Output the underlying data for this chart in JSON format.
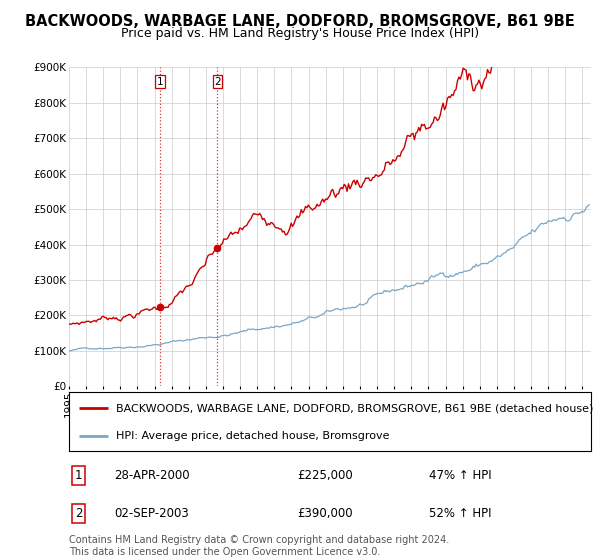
{
  "title": "BACKWOODS, WARBAGE LANE, DODFORD, BROMSGROVE, B61 9BE",
  "subtitle": "Price paid vs. HM Land Registry's House Price Index (HPI)",
  "ylim": [
    0,
    900000
  ],
  "yticks": [
    0,
    100000,
    200000,
    300000,
    400000,
    500000,
    600000,
    700000,
    800000,
    900000
  ],
  "xlim_start": 1995.0,
  "xlim_end": 2025.5,
  "background_color": "#ffffff",
  "grid_color": "#cccccc",
  "red_color": "#cc0000",
  "blue_color": "#7ba7c7",
  "transaction1_x": 2000.32,
  "transaction1_y": 225000,
  "transaction2_x": 2003.67,
  "transaction2_y": 390000,
  "legend_red": "BACKWOODS, WARBAGE LANE, DODFORD, BROMSGROVE, B61 9BE (detached house)",
  "legend_blue": "HPI: Average price, detached house, Bromsgrove",
  "table_rows": [
    {
      "num": "1",
      "date": "28-APR-2000",
      "price": "£225,000",
      "hpi": "47% ↑ HPI"
    },
    {
      "num": "2",
      "date": "02-SEP-2003",
      "price": "£390,000",
      "hpi": "52% ↑ HPI"
    }
  ],
  "footer": "Contains HM Land Registry data © Crown copyright and database right 2024.\nThis data is licensed under the Open Government Licence v3.0.",
  "title_fontsize": 10.5,
  "subtitle_fontsize": 9,
  "tick_fontsize": 7.5,
  "legend_fontsize": 8,
  "table_fontsize": 8.5,
  "footer_fontsize": 7
}
